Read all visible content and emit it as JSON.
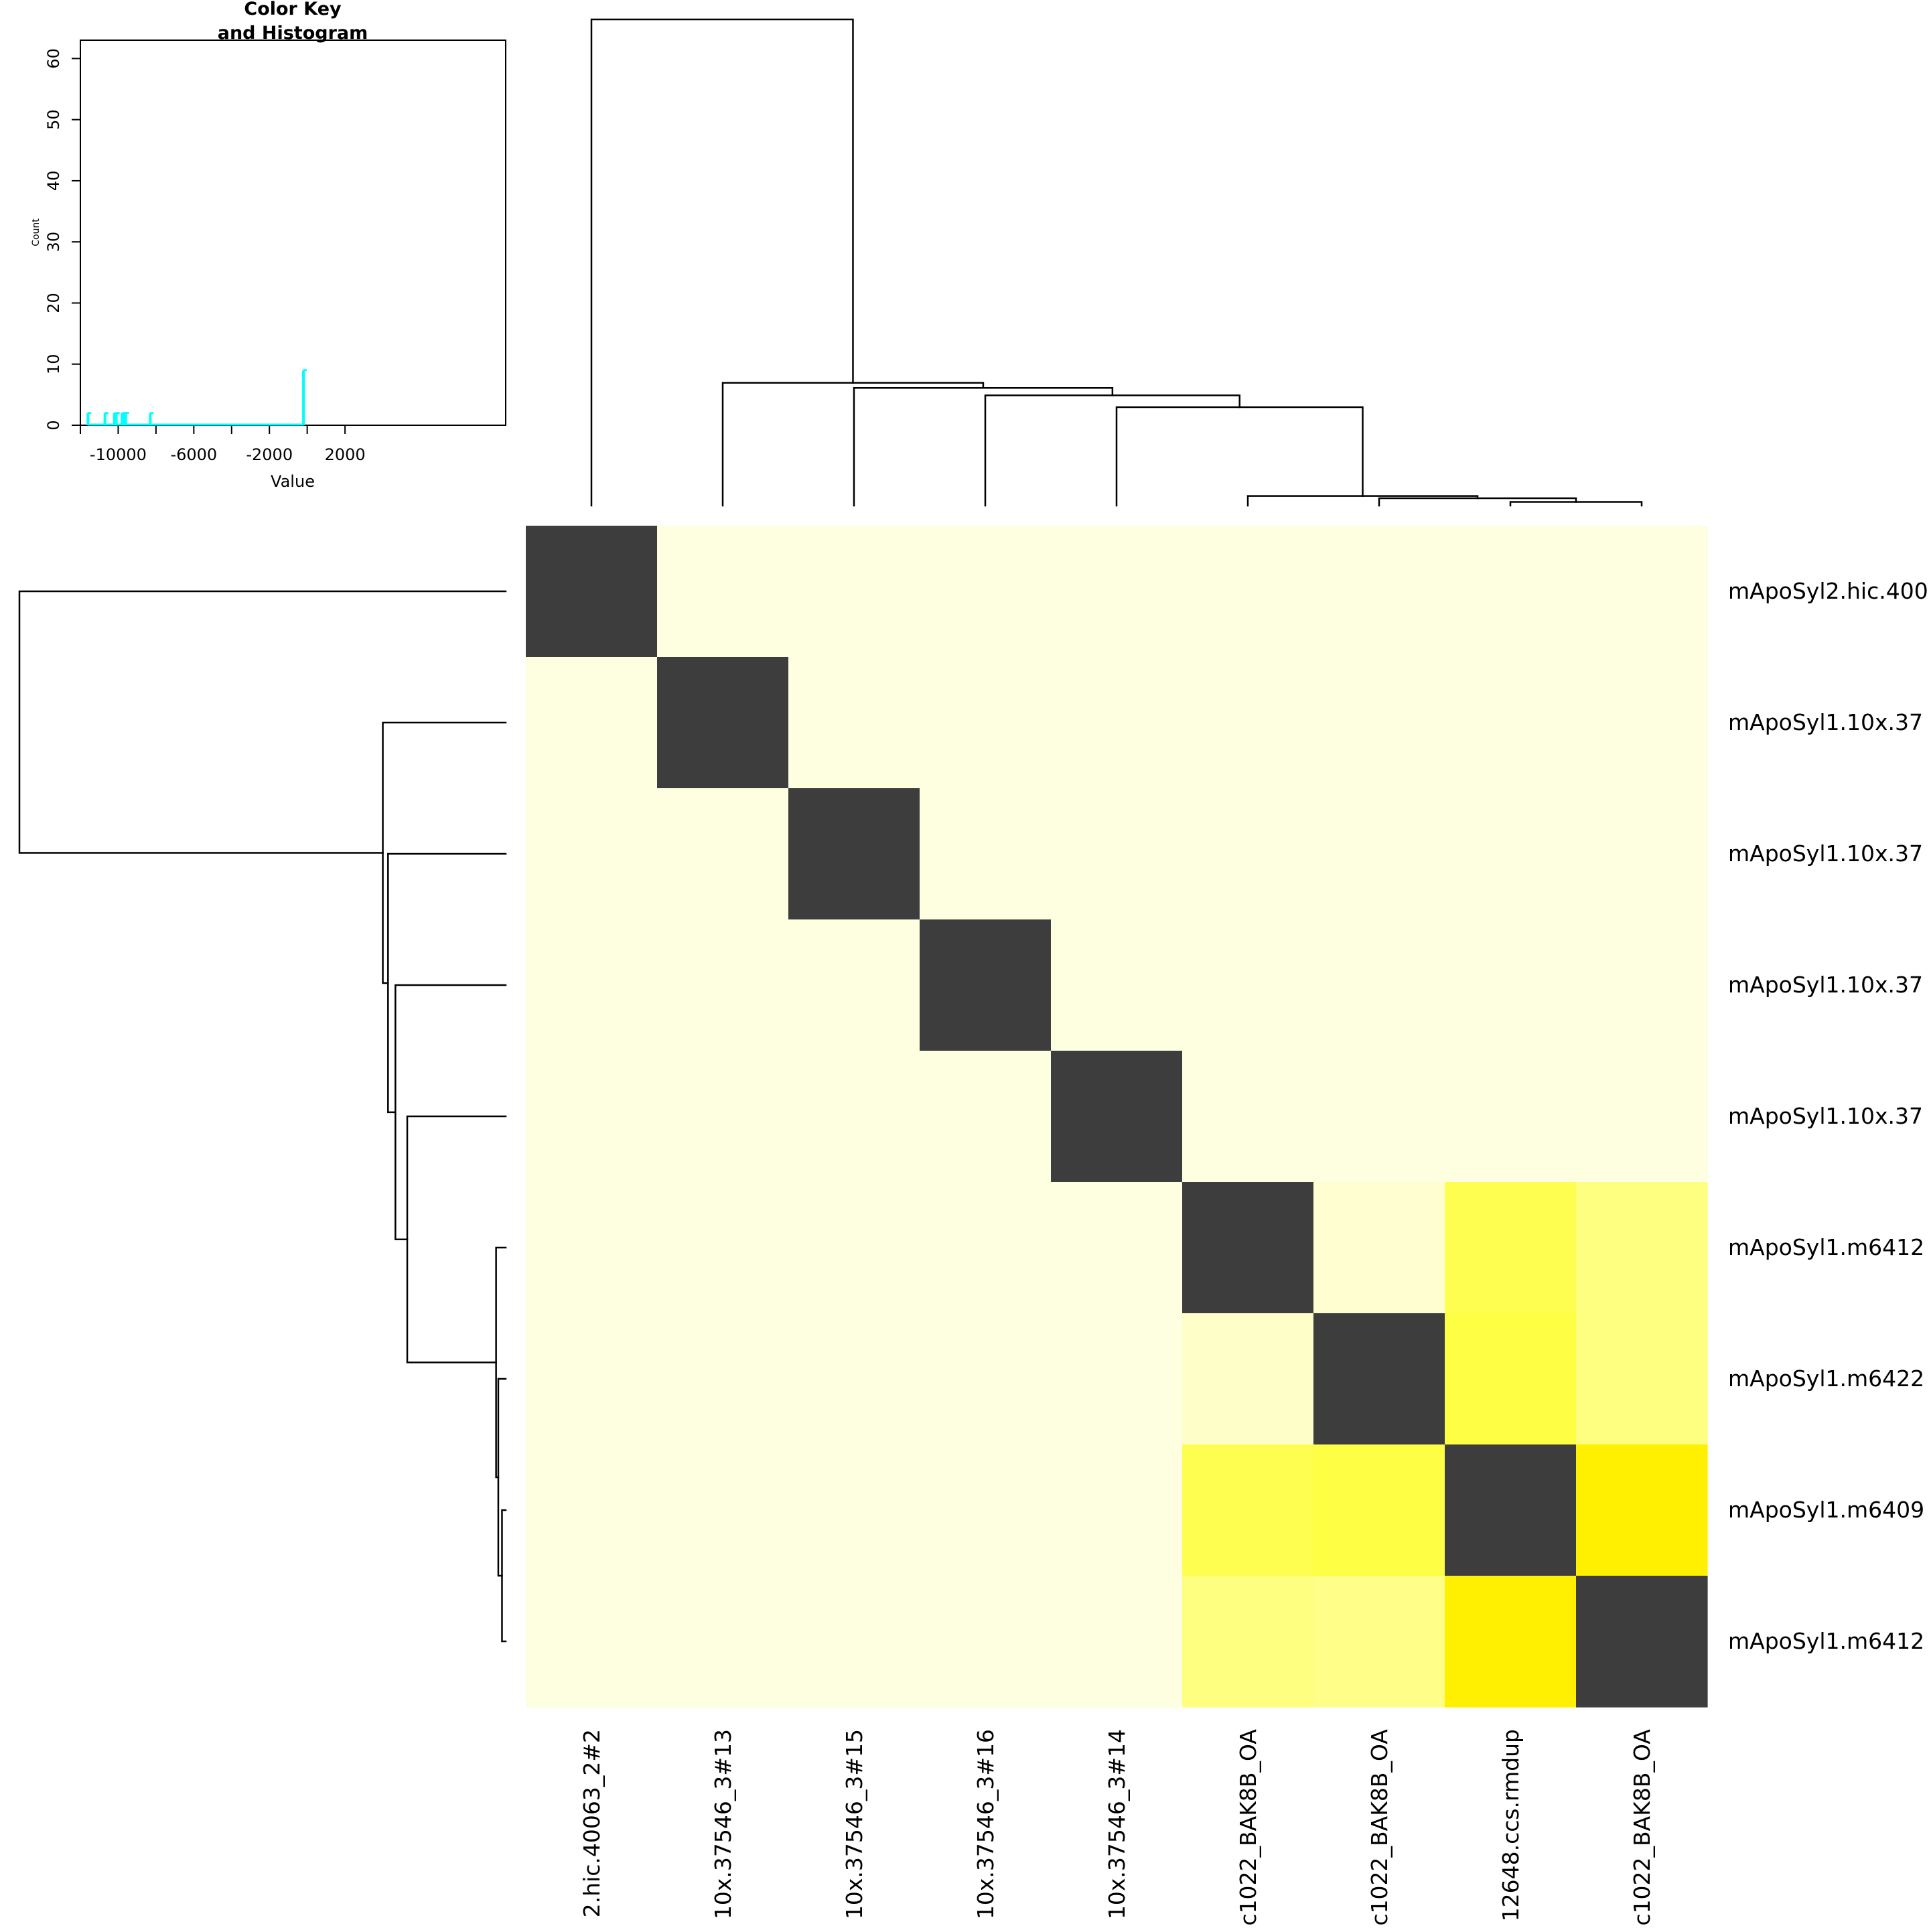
{
  "chart_data": {
    "type": "heatmap",
    "row_labels": [
      "mApoSyl2.hic.400",
      "mApoSyl1.10x.37",
      "mApoSyl1.10x.37",
      "mApoSyl1.10x.37",
      "mApoSyl1.10x.37",
      "mApoSyl1.m6412",
      "mApoSyl1.m6422",
      "mApoSyl1.m6409",
      "mApoSyl1.m6412"
    ],
    "col_labels": [
      "2.hic.40063_2#2",
      "10x.37546_3#13",
      "10x.37546_3#15",
      "10x.37546_3#16",
      "10x.37546_3#14",
      "c1022_BAK8B_OA",
      "c1022_BAK8B_OA",
      "12648.ccs.rmdup",
      "c1022_BAK8B_OA"
    ],
    "cell_colors": [
      [
        "#3d3d3d",
        "#fefee0",
        "#fefee0",
        "#fefee0",
        "#fefee0",
        "#fefee0",
        "#fefee0",
        "#fefee0",
        "#fefee0"
      ],
      [
        "#fefee0",
        "#3d3d3d",
        "#fefee0",
        "#fefee0",
        "#fefee0",
        "#fefee0",
        "#fefee0",
        "#fefee0",
        "#fefee0"
      ],
      [
        "#fefee0",
        "#fefee0",
        "#3d3d3d",
        "#fefee0",
        "#fefee0",
        "#fefee0",
        "#fefee0",
        "#fefee0",
        "#fefee0"
      ],
      [
        "#fefee0",
        "#fefee0",
        "#fefee0",
        "#3d3d3d",
        "#fefee0",
        "#fefee0",
        "#fefee0",
        "#fefee0",
        "#fefee0"
      ],
      [
        "#fefee0",
        "#fefee0",
        "#fefee0",
        "#fefee0",
        "#3d3d3d",
        "#fefee0",
        "#fefee0",
        "#fefee0",
        "#fefee0"
      ],
      [
        "#fefee0",
        "#fefee0",
        "#fefee0",
        "#fefee0",
        "#fefee0",
        "#3d3d3d",
        "#fefed0",
        "#fefe50",
        "#fefe80"
      ],
      [
        "#fefee0",
        "#fefee0",
        "#fefee0",
        "#fefee0",
        "#fefee0",
        "#fefec8",
        "#3d3d3d",
        "#fefe44",
        "#fefe80"
      ],
      [
        "#fefee0",
        "#fefee0",
        "#fefee0",
        "#fefee0",
        "#fefee0",
        "#fefe50",
        "#fefe44",
        "#3d3d3d",
        "#fef000"
      ],
      [
        "#fefee0",
        "#fefee0",
        "#fefee0",
        "#fefee0",
        "#fefee0",
        "#fefe80",
        "#fefe88",
        "#fef000",
        "#3d3d3d"
      ]
    ],
    "col_dendrogram_merges": [
      {
        "a": 7,
        "b": 8,
        "height": 0.5
      },
      {
        "a": 6,
        "b": "m0",
        "height": 1.0
      },
      {
        "a": 5,
        "b": "m1",
        "height": 1.3
      },
      {
        "a": 4,
        "b": "m2",
        "height": 13.3
      },
      {
        "a": 3,
        "b": "m3",
        "height": 14.9
      },
      {
        "a": 2,
        "b": "m4",
        "height": 15.9
      },
      {
        "a": 1,
        "b": "m5",
        "height": 16.6
      },
      {
        "a": 0,
        "b": "m6",
        "height": 65.7
      }
    ],
    "color_key": {
      "title_line1": "Color Key",
      "title_line2": "and Histogram",
      "xlabel": "Value",
      "ylabel": "Count",
      "x_ticks": [
        -10000,
        -6000,
        -2000,
        2000
      ],
      "x_tick_labels": [
        "-10000",
        "-6000",
        "-2000",
        "2000"
      ],
      "x_minor_ticks": [
        -12000,
        -8000,
        -4000,
        0
      ],
      "y_ticks": [
        0,
        10,
        20,
        30,
        40,
        50,
        60
      ],
      "y_tick_labels": [
        "0",
        "10",
        "20",
        "30",
        "40",
        "50",
        "60"
      ],
      "xlim": [
        -12000,
        10500
      ],
      "ylim": [
        0,
        63
      ],
      "histogram_color": "#00ffff",
      "histogram": [
        {
          "x": -11600,
          "count": 2
        },
        {
          "x": -10700,
          "count": 2
        },
        {
          "x": -10200,
          "count": 2
        },
        {
          "x": -10100,
          "count": 2
        },
        {
          "x": -9800,
          "count": 2
        },
        {
          "x": -9700,
          "count": 2
        },
        {
          "x": -9600,
          "count": 2
        },
        {
          "x": -8300,
          "count": 2
        },
        {
          "x": -200,
          "count": 9
        }
      ]
    }
  }
}
